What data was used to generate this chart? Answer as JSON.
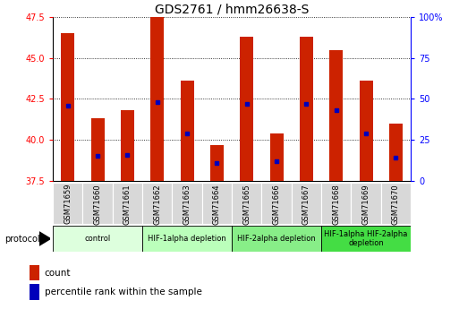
{
  "title": "GDS2761 / hmm26638-S",
  "samples": [
    "GSM71659",
    "GSM71660",
    "GSM71661",
    "GSM71662",
    "GSM71663",
    "GSM71664",
    "GSM71665",
    "GSM71666",
    "GSM71667",
    "GSM71668",
    "GSM71669",
    "GSM71670"
  ],
  "count_top": [
    46.5,
    41.3,
    41.8,
    47.5,
    43.6,
    39.7,
    46.3,
    40.4,
    46.3,
    45.5,
    43.6,
    41.0
  ],
  "count_bottom": [
    37.5,
    37.5,
    37.5,
    37.5,
    37.5,
    37.5,
    37.5,
    37.5,
    37.5,
    37.5,
    37.5,
    37.5
  ],
  "percentile_pos": [
    42.1,
    39.0,
    39.1,
    42.3,
    40.4,
    38.6,
    42.2,
    38.7,
    42.2,
    41.8,
    40.4,
    38.9
  ],
  "ylim_left": [
    37.5,
    47.5
  ],
  "yticks_left": [
    37.5,
    40.0,
    42.5,
    45.0,
    47.5
  ],
  "yticks_right": [
    0,
    25,
    50,
    75,
    100
  ],
  "ytick_labels_right": [
    "0",
    "25",
    "50",
    "75",
    "100%"
  ],
  "bar_color": "#cc2200",
  "dot_color": "#0000bb",
  "groups": [
    {
      "label": "control",
      "start": 0,
      "end": 3,
      "color": "#ddffdd"
    },
    {
      "label": "HIF-1alpha depletion",
      "start": 3,
      "end": 6,
      "color": "#bbffbb"
    },
    {
      "label": "HIF-2alpha depletion",
      "start": 6,
      "end": 9,
      "color": "#88ee88"
    },
    {
      "label": "HIF-1alpha HIF-2alpha\ndepletion",
      "start": 9,
      "end": 12,
      "color": "#44dd44"
    }
  ],
  "legend_count_color": "#cc2200",
  "legend_dot_color": "#0000bb",
  "xlabel_protocol": "protocol",
  "background_color": "#ffffff",
  "title_fontsize": 10,
  "bar_width": 0.45
}
